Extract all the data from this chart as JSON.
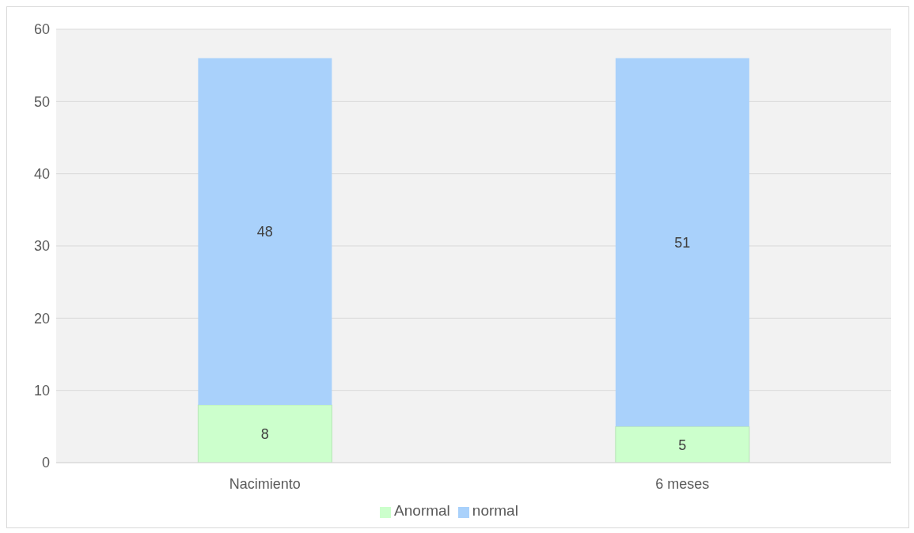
{
  "chart_data": {
    "type": "bar",
    "stacked": true,
    "categories": [
      "Nacimiento",
      "6 meses"
    ],
    "series": [
      {
        "name": "Anormal",
        "color": "#ccffcc",
        "values": [
          8,
          5
        ]
      },
      {
        "name": "normal",
        "color": "#a9d1fb",
        "values": [
          48,
          51
        ]
      }
    ],
    "ylim": [
      0,
      60
    ],
    "yticks": [
      0,
      10,
      20,
      30,
      40,
      50,
      60
    ],
    "grid": "y",
    "legend": "bottom",
    "data_labels": true
  }
}
